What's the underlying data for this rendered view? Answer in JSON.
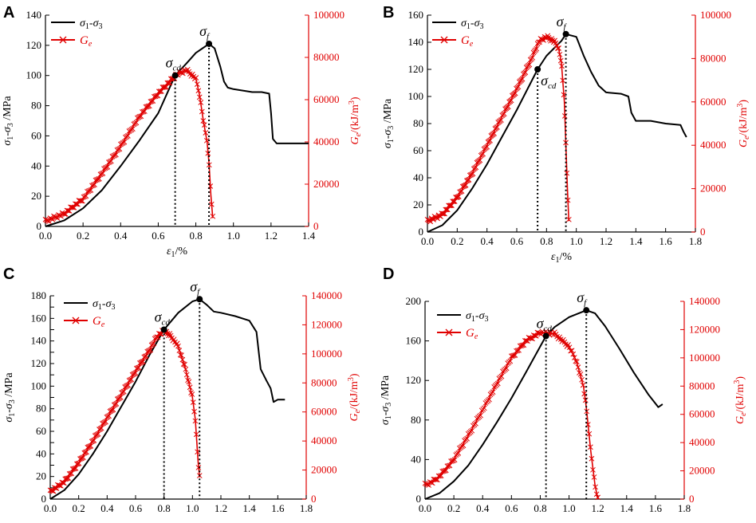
{
  "figure": {
    "colors": {
      "stress": "#000000",
      "energy": "#e00000",
      "background": "#ffffff"
    }
  },
  "chart_data": [
    {
      "panel": "A",
      "type": "line",
      "xlabel_main": "ε",
      "xlabel_sub": "1",
      "xlabel_unit": "/%",
      "ylabel_left": "σ1-σ3 /MPa",
      "ylabel_right": "Ge/(kJ/m3)",
      "xlim": [
        0,
        1.4
      ],
      "xticks": [
        0.0,
        0.2,
        0.4,
        0.6,
        0.8,
        1.0,
        1.2,
        1.4
      ],
      "xtick_labels": [
        "0.0",
        "0.2",
        "0.4",
        "0.6",
        "0.8",
        "1.0",
        "1.2",
        "1.4"
      ],
      "ylim_left": [
        0,
        140
      ],
      "yticks_left": [
        0,
        20,
        40,
        60,
        80,
        100,
        120,
        140
      ],
      "ylim_right": [
        0,
        100000
      ],
      "yticks_right": [
        0,
        20000,
        40000,
        60000,
        80000,
        100000
      ],
      "legend": {
        "stress": "σ1-σ3",
        "energy": "Ge"
      },
      "annotations": {
        "sigma_cd": {
          "label": "σcd",
          "x": 0.69,
          "y": 100
        },
        "sigma_f": {
          "label": "σf",
          "x": 0.87,
          "y": 121
        }
      },
      "series": [
        {
          "name": "σ1-σ3",
          "axis": "left",
          "points": [
            [
              0,
              0
            ],
            [
              0.1,
              4
            ],
            [
              0.2,
              12
            ],
            [
              0.3,
              24
            ],
            [
              0.4,
              40
            ],
            [
              0.5,
              57
            ],
            [
              0.6,
              75
            ],
            [
              0.69,
              100
            ],
            [
              0.75,
              108
            ],
            [
              0.8,
              115
            ],
            [
              0.87,
              121
            ],
            [
              0.9,
              118
            ],
            [
              0.93,
              106
            ],
            [
              0.95,
              96
            ],
            [
              0.97,
              92
            ],
            [
              1.0,
              91
            ],
            [
              1.05,
              90
            ],
            [
              1.1,
              89
            ],
            [
              1.15,
              89
            ],
            [
              1.19,
              88
            ],
            [
              1.2,
              75
            ],
            [
              1.21,
              58
            ],
            [
              1.23,
              55
            ],
            [
              1.3,
              55
            ],
            [
              1.4,
              55
            ]
          ]
        },
        {
          "name": "Ge",
          "axis": "right",
          "points": [
            [
              0,
              2500
            ],
            [
              0.1,
              6000
            ],
            [
              0.2,
              13000
            ],
            [
              0.3,
              25000
            ],
            [
              0.4,
              38000
            ],
            [
              0.5,
              52000
            ],
            [
              0.6,
              63000
            ],
            [
              0.7,
              72000
            ],
            [
              0.75,
              74000
            ],
            [
              0.8,
              70000
            ],
            [
              0.82,
              62000
            ],
            [
              0.84,
              50000
            ],
            [
              0.86,
              40000
            ],
            [
              0.87,
              30000
            ],
            [
              0.88,
              15000
            ],
            [
              0.89,
              4000
            ]
          ]
        }
      ]
    },
    {
      "panel": "B",
      "type": "line",
      "xlabel_main": "ε",
      "xlabel_sub": "1",
      "xlabel_unit": "/%",
      "ylabel_left": "σ1-σ3 /MPa",
      "ylabel_right": "Ge/(kJ/m3)",
      "xlim": [
        0,
        1.8
      ],
      "xticks": [
        0.0,
        0.2,
        0.4,
        0.6,
        0.8,
        1.0,
        1.2,
        1.4,
        1.6,
        1.8
      ],
      "xtick_labels": [
        "0.0",
        "0.2",
        "0.4",
        "0.6",
        "0.8",
        "1.0",
        "1.2",
        "1.4",
        "1.6",
        "1.8"
      ],
      "ylim_left": [
        0,
        160
      ],
      "yticks_left": [
        0,
        20,
        40,
        60,
        80,
        100,
        120,
        140,
        160
      ],
      "ylim_right": [
        0,
        100000
      ],
      "yticks_right": [
        0,
        20000,
        40000,
        60000,
        80000,
        100000
      ],
      "legend": {
        "stress": "σ1-σ3",
        "energy": "Ge"
      },
      "annotations": {
        "sigma_cd": {
          "label": "σcd",
          "x": 0.74,
          "y": 120
        },
        "sigma_f": {
          "label": "σf",
          "x": 0.93,
          "y": 146
        }
      },
      "series": [
        {
          "name": "σ1-σ3",
          "axis": "left",
          "points": [
            [
              0,
              0
            ],
            [
              0.1,
              5
            ],
            [
              0.2,
              16
            ],
            [
              0.3,
              32
            ],
            [
              0.4,
              50
            ],
            [
              0.5,
              70
            ],
            [
              0.6,
              90
            ],
            [
              0.74,
              120
            ],
            [
              0.8,
              130
            ],
            [
              0.9,
              141
            ],
            [
              0.93,
              146
            ],
            [
              1.0,
              144
            ],
            [
              1.05,
              130
            ],
            [
              1.1,
              118
            ],
            [
              1.15,
              108
            ],
            [
              1.2,
              103
            ],
            [
              1.3,
              102
            ],
            [
              1.35,
              100
            ],
            [
              1.37,
              88
            ],
            [
              1.4,
              82
            ],
            [
              1.5,
              82
            ],
            [
              1.6,
              80
            ],
            [
              1.7,
              79
            ],
            [
              1.72,
              74
            ],
            [
              1.74,
              70
            ]
          ]
        },
        {
          "name": "Ge",
          "axis": "right",
          "points": [
            [
              0,
              5000
            ],
            [
              0.1,
              8000
            ],
            [
              0.2,
              16000
            ],
            [
              0.3,
              27000
            ],
            [
              0.4,
              40000
            ],
            [
              0.5,
              53000
            ],
            [
              0.6,
              66000
            ],
            [
              0.7,
              80000
            ],
            [
              0.75,
              88000
            ],
            [
              0.8,
              90000
            ],
            [
              0.85,
              88000
            ],
            [
              0.88,
              85000
            ],
            [
              0.9,
              78000
            ],
            [
              0.92,
              60000
            ],
            [
              0.93,
              40000
            ],
            [
              0.94,
              20000
            ],
            [
              0.95,
              5000
            ]
          ]
        }
      ]
    },
    {
      "panel": "C",
      "type": "line",
      "xlabel_main": "ε",
      "xlabel_sub": "1",
      "xlabel_unit": "/%",
      "ylabel_left": "σ1-σ3 /MPa",
      "ylabel_right": "Ge/(kJ/m3)",
      "xlim": [
        0,
        1.8
      ],
      "xticks": [
        0.0,
        0.2,
        0.4,
        0.6,
        0.8,
        1.0,
        1.2,
        1.4,
        1.6,
        1.8
      ],
      "xtick_labels": [
        "0.0",
        "0.2",
        "0.4",
        "0.6",
        "0.8",
        "1.0",
        "1.2",
        "1.4",
        "1.6",
        "1.8"
      ],
      "ylim_left": [
        0,
        180
      ],
      "yticks_left": [
        0,
        10,
        20,
        30,
        40,
        50,
        60,
        70,
        80,
        90,
        100,
        110,
        120,
        130,
        140,
        150,
        160,
        170,
        180
      ],
      "yticks_left_labeled": [
        0,
        20,
        40,
        60,
        80,
        100,
        120,
        140,
        160,
        180
      ],
      "ylim_right": [
        0,
        140000
      ],
      "yticks_right": [
        0,
        20000,
        40000,
        60000,
        80000,
        100000,
        120000,
        140000
      ],
      "legend": {
        "stress": "σ1-σ3",
        "energy": "Ge"
      },
      "annotations": {
        "sigma_cd": {
          "label": "σcd",
          "x": 0.8,
          "y": 150
        },
        "sigma_f": {
          "label": "σf",
          "x": 1.05,
          "y": 177
        }
      },
      "series": [
        {
          "name": "σ1-σ3",
          "axis": "left",
          "points": [
            [
              0,
              0
            ],
            [
              0.1,
              8
            ],
            [
              0.2,
              22
            ],
            [
              0.3,
              40
            ],
            [
              0.4,
              60
            ],
            [
              0.5,
              82
            ],
            [
              0.6,
              104
            ],
            [
              0.7,
              128
            ],
            [
              0.8,
              150
            ],
            [
              0.9,
              165
            ],
            [
              1.0,
              175
            ],
            [
              1.05,
              177
            ],
            [
              1.1,
              172
            ],
            [
              1.15,
              166
            ],
            [
              1.2,
              165
            ],
            [
              1.3,
              162
            ],
            [
              1.4,
              158
            ],
            [
              1.45,
              148
            ],
            [
              1.48,
              115
            ],
            [
              1.52,
              105
            ],
            [
              1.55,
              98
            ],
            [
              1.57,
              86
            ],
            [
              1.6,
              88
            ],
            [
              1.65,
              88
            ]
          ]
        },
        {
          "name": "Ge",
          "axis": "right",
          "points": [
            [
              0,
              5000
            ],
            [
              0.1,
              12000
            ],
            [
              0.2,
              25000
            ],
            [
              0.3,
              40000
            ],
            [
              0.4,
              56000
            ],
            [
              0.5,
              72000
            ],
            [
              0.6,
              88000
            ],
            [
              0.7,
              103000
            ],
            [
              0.75,
              112000
            ],
            [
              0.8,
              116000
            ],
            [
              0.85,
              112000
            ],
            [
              0.9,
              105000
            ],
            [
              0.95,
              90000
            ],
            [
              1.0,
              70000
            ],
            [
              1.02,
              55000
            ],
            [
              1.03,
              40000
            ],
            [
              1.04,
              25000
            ],
            [
              1.05,
              15000
            ]
          ]
        }
      ]
    },
    {
      "panel": "D",
      "type": "line",
      "xlabel_main": "ε",
      "xlabel_sub": "1",
      "xlabel_unit": "/%",
      "ylabel_left": "σ1-σ3 /MPa",
      "ylabel_right": "Ge/(kJ/m3)",
      "xlim": [
        0,
        1.8
      ],
      "xticks": [
        0.0,
        0.2,
        0.4,
        0.6,
        0.8,
        1.0,
        1.2,
        1.4,
        1.6,
        1.8
      ],
      "xtick_labels": [
        "0.0",
        "0.2",
        "0.4",
        "0.6",
        "0.8",
        "1.0",
        "1.2",
        "1.4",
        "1.6",
        "1.8"
      ],
      "ylim_left": [
        0,
        200
      ],
      "yticks_left": [
        0,
        40,
        80,
        120,
        160,
        200
      ],
      "ylim_right": [
        0,
        140000
      ],
      "yticks_right": [
        0,
        20000,
        40000,
        60000,
        80000,
        100000,
        120000,
        140000
      ],
      "legend": {
        "stress": "σ1-σ3",
        "energy": "Ge"
      },
      "annotations": {
        "sigma_cd": {
          "label": "σcd",
          "x": 0.84,
          "y": 165
        },
        "sigma_f": {
          "label": "σf",
          "x": 1.12,
          "y": 191
        }
      },
      "series": [
        {
          "name": "σ1-σ3",
          "axis": "left",
          "points": [
            [
              0,
              0
            ],
            [
              0.1,
              6
            ],
            [
              0.2,
              18
            ],
            [
              0.3,
              34
            ],
            [
              0.4,
              55
            ],
            [
              0.5,
              78
            ],
            [
              0.6,
              102
            ],
            [
              0.7,
              128
            ],
            [
              0.84,
              165
            ],
            [
              0.9,
              174
            ],
            [
              1.0,
              184
            ],
            [
              1.12,
              191
            ],
            [
              1.18,
              188
            ],
            [
              1.25,
              175
            ],
            [
              1.35,
              152
            ],
            [
              1.45,
              128
            ],
            [
              1.55,
              106
            ],
            [
              1.62,
              93
            ],
            [
              1.65,
              96
            ]
          ]
        },
        {
          "name": "Ge",
          "axis": "right",
          "points": [
            [
              0,
              10000
            ],
            [
              0.05,
              12000
            ],
            [
              0.1,
              16000
            ],
            [
              0.2,
              28000
            ],
            [
              0.3,
              45000
            ],
            [
              0.4,
              63000
            ],
            [
              0.5,
              82000
            ],
            [
              0.6,
              100000
            ],
            [
              0.7,
              112000
            ],
            [
              0.8,
              118000
            ],
            [
              0.9,
              117000
            ],
            [
              1.0,
              108000
            ],
            [
              1.05,
              98000
            ],
            [
              1.1,
              80000
            ],
            [
              1.12,
              65000
            ],
            [
              1.15,
              35000
            ],
            [
              1.18,
              10000
            ],
            [
              1.2,
              0
            ]
          ]
        }
      ]
    }
  ]
}
